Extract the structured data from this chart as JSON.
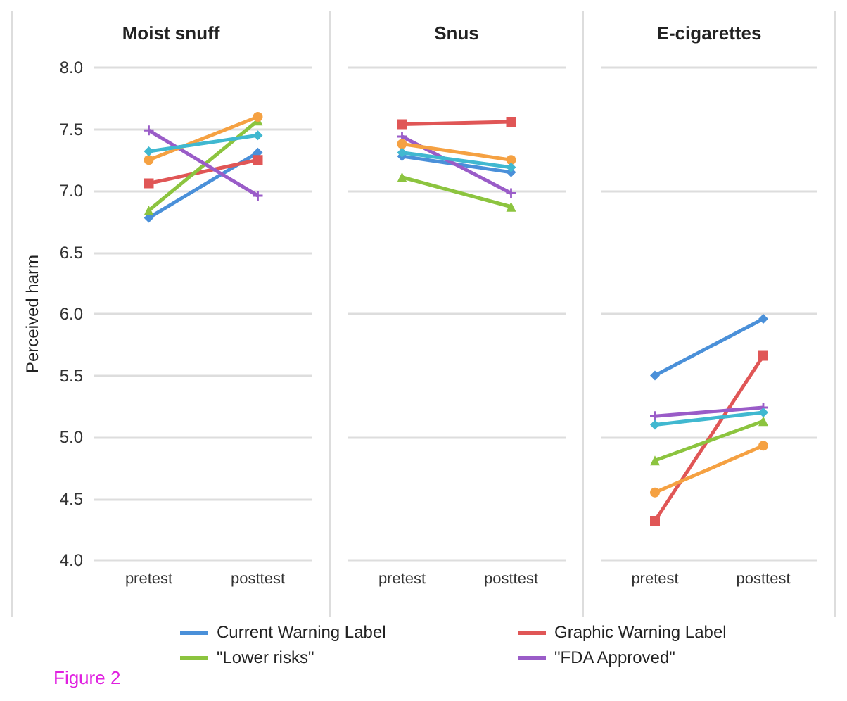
{
  "chart_data": [
    {
      "type": "line",
      "title": "Moist snuff",
      "ylabel": "Perceived harm",
      "categories": [
        "pretest",
        "posttest"
      ],
      "ylim": [
        4.0,
        8.0
      ],
      "yticks": [
        {
          "value": 4,
          "label": "4.0"
        },
        {
          "value": 4.5,
          "label": "4.5"
        },
        {
          "value": 5,
          "label": "5.0"
        },
        {
          "value": 5.5,
          "label": "5.5"
        },
        {
          "value": 6,
          "label": "6.0"
        },
        {
          "value": 6.5,
          "label": "6.5"
        },
        {
          "value": 7,
          "label": "7.0"
        },
        {
          "value": 7.5,
          "label": "7.5"
        },
        {
          "value": 8,
          "label": "8.0"
        }
      ],
      "grid": "y",
      "legend": "bottom",
      "annotations": [
        "Figure 2"
      ],
      "series": [
        {
          "name": "Current Warning Label",
          "color": "#4a90d9",
          "marker": "diamond",
          "values": [
            6.78,
            7.31
          ]
        },
        {
          "name": "Graphic Warning Label",
          "color": "#e05656",
          "marker": "square",
          "values": [
            7.06,
            7.25
          ]
        },
        {
          "name": "\"Lower risks\"",
          "color": "#8cc43f",
          "marker": "triangle",
          "values": [
            6.84,
            7.57
          ]
        },
        {
          "name": "\"FDA Approved\"",
          "color": "#9a5cc8",
          "marker": "cross",
          "values": [
            7.49,
            6.96
          ]
        },
        {
          "color": "#f5a142",
          "marker": "circle",
          "values": [
            7.25,
            7.6
          ]
        },
        {
          "color": "#40b8d0",
          "marker": "diamond",
          "values": [
            7.32,
            7.45
          ]
        }
      ]
    },
    {
      "type": "line",
      "title": "Snus",
      "categories": [
        "pretest",
        "posttest"
      ],
      "ylim": [
        4.0,
        8.0
      ],
      "grid": "y",
      "tick_labels": "x",
      "series": [
        {
          "color": "#4a90d9",
          "marker": "diamond",
          "values": [
            7.28,
            7.15
          ]
        },
        {
          "color": "#e05656",
          "marker": "square",
          "values": [
            7.54,
            7.56
          ]
        },
        {
          "color": "#8cc43f",
          "marker": "triangle",
          "values": [
            7.11,
            6.87
          ]
        },
        {
          "color": "#9a5cc8",
          "marker": "cross",
          "values": [
            7.44,
            6.98
          ]
        },
        {
          "color": "#f5a142",
          "marker": "circle",
          "values": [
            7.38,
            7.25
          ]
        },
        {
          "color": "#40b8d0",
          "marker": "diamond",
          "values": [
            7.31,
            7.19
          ]
        }
      ]
    },
    {
      "type": "line",
      "title": "E-cigarettes",
      "categories": [
        "pretest",
        "posttest"
      ],
      "ylim": [
        4.0,
        8.0
      ],
      "grid": "y",
      "tick_labels": "x",
      "series": [
        {
          "color": "#4a90d9",
          "marker": "diamond",
          "values": [
            5.5,
            5.96
          ]
        },
        {
          "color": "#e05656",
          "marker": "square",
          "values": [
            4.32,
            5.66
          ]
        },
        {
          "color": "#8cc43f",
          "marker": "triangle",
          "values": [
            4.81,
            5.13
          ]
        },
        {
          "color": "#9a5cc8",
          "marker": "cross",
          "values": [
            5.17,
            5.24
          ]
        },
        {
          "color": "#f5a142",
          "marker": "circle",
          "values": [
            4.55,
            4.93
          ]
        },
        {
          "color": "#40b8d0",
          "marker": "diamond",
          "values": [
            5.1,
            5.2
          ]
        }
      ]
    }
  ]
}
